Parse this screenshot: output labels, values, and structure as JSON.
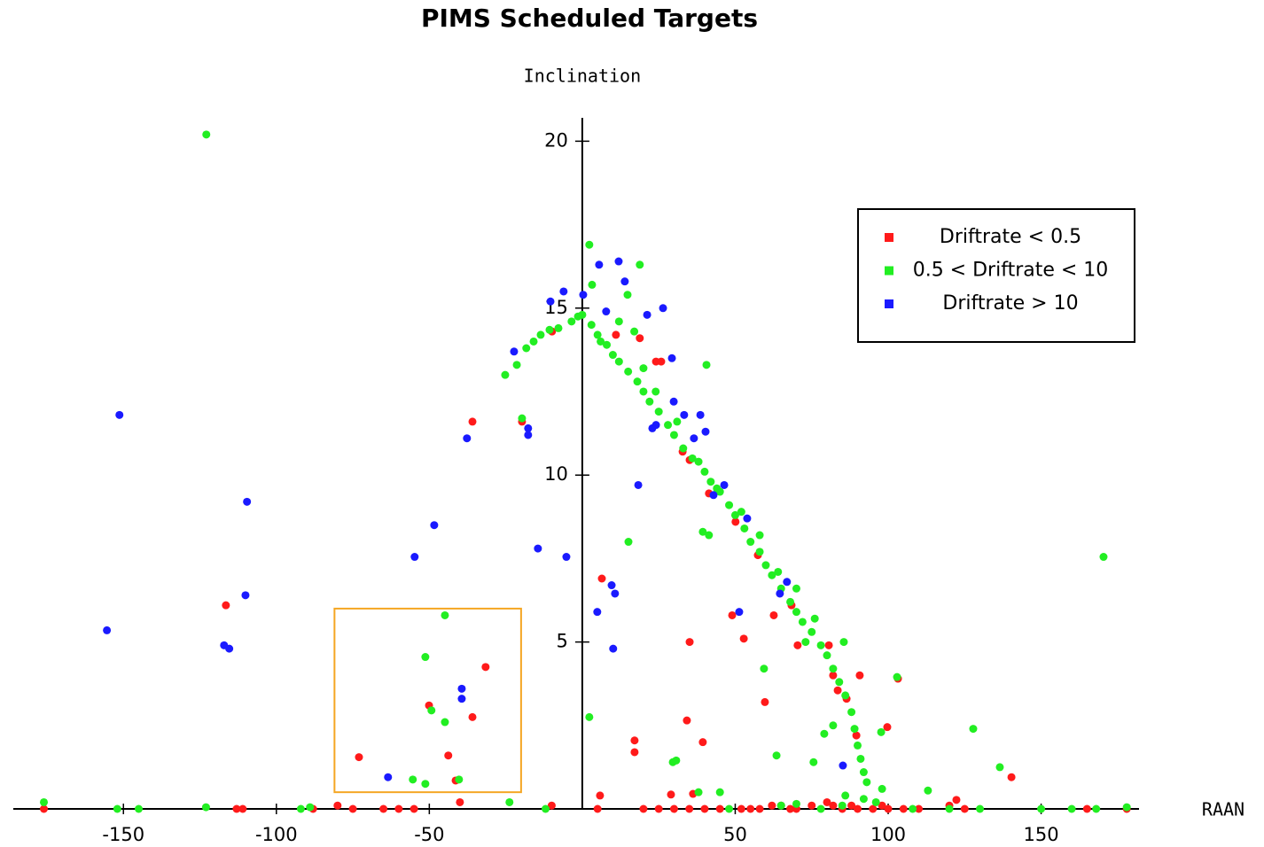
{
  "chart_data": {
    "type": "scatter",
    "title": "PIMS Scheduled Targets",
    "y_label": "Inclination",
    "x_label": "RAAN",
    "xlim": [
      -186,
      182
    ],
    "ylim": [
      0,
      20.7
    ],
    "xticks": [
      -150,
      -100,
      -50,
      50,
      100,
      150
    ],
    "yticks": [
      5,
      10,
      15,
      20
    ],
    "legend": "upper right",
    "region": {
      "x": [
        -81,
        -20
      ],
      "y": [
        0.5,
        6
      ],
      "color": "#f5a623"
    },
    "series": [
      {
        "name": "Driftrate < 0.5",
        "color": "#ff1a1a",
        "x": [
          -116.5,
          -35.9,
          -19.7,
          -9.9,
          -31.6,
          -50.1,
          -35.9,
          -43.8,
          -73.0,
          -41.4,
          6.4,
          17.1,
          17.1,
          35.1,
          34.2,
          39.4,
          49.0,
          52.8,
          59.7,
          62.6,
          68.4,
          24.1,
          25.8,
          11.0,
          18.8,
          32.8,
          35.1,
          41.4,
          50.1,
          57.4,
          70.4,
          80.6,
          82.0,
          90.7,
          83.5,
          86.4,
          89.6,
          99.7,
          103.2,
          140.3,
          122.3,
          5.8,
          29,
          36.2,
          -176,
          -113,
          -111,
          -88,
          -80,
          -75,
          -65,
          -60,
          -55,
          -40,
          -10,
          5,
          20,
          25,
          30,
          35,
          40,
          45,
          52,
          55,
          58,
          62,
          65,
          68,
          70,
          75,
          80,
          82,
          85,
          88,
          90,
          95,
          98,
          100,
          105,
          110,
          120,
          125,
          165,
          178
        ],
        "values": [
          6.1,
          11.6,
          11.6,
          14.3,
          4.25,
          3.1,
          2.75,
          1.6,
          1.55,
          0.85,
          6.9,
          2.05,
          1.7,
          5.0,
          2.65,
          2.0,
          5.8,
          5.1,
          3.2,
          5.8,
          6.1,
          13.4,
          13.4,
          14.2,
          14.1,
          10.7,
          10.45,
          9.45,
          8.6,
          7.6,
          4.9,
          4.9,
          4.0,
          4.0,
          3.55,
          3.3,
          2.2,
          2.45,
          3.9,
          0.95,
          0.27,
          0.4,
          0.43,
          0.45,
          0,
          0,
          0,
          0,
          0.1,
          0,
          0,
          0,
          0,
          0.2,
          0.1,
          0,
          0,
          0,
          0,
          0,
          0,
          0,
          0,
          0,
          0,
          0.1,
          0.1,
          0,
          0,
          0.1,
          0.2,
          0.1,
          0,
          0.1,
          0,
          0,
          0.1,
          0,
          0,
          0,
          0.1,
          0,
          0,
          0
        ]
      },
      {
        "name": "0.5 < Driftrate < 10",
        "color": "#22ee22",
        "x": [
          -122.9,
          -44.9,
          -51.3,
          -49.3,
          -44.9,
          -55.4,
          -51.3,
          -40.3,
          -23.8,
          -25.2,
          -19.7,
          -21.4,
          -18.3,
          -15.9,
          -13.6,
          -10.7,
          -7.8,
          -3.5,
          -1.4,
          2.3,
          3.2,
          14.8,
          18.8,
          2.3,
          15.1,
          29.6,
          30.7,
          40.6,
          39.4,
          41.4,
          59.4,
          63.5,
          75.6,
          79.1,
          82.0,
          85.5,
          97.7,
          102.9,
          127.8,
          136.5,
          170.4,
          113,
          5,
          8,
          10,
          12,
          15,
          18,
          20,
          22,
          25,
          28,
          30,
          33,
          36,
          40,
          42,
          45,
          48,
          50,
          53,
          55,
          58,
          60,
          62,
          65,
          68,
          70,
          72,
          75,
          78,
          80,
          82,
          84,
          86,
          88,
          89,
          90,
          91,
          92,
          93,
          12,
          17,
          20,
          24,
          31,
          38,
          44,
          52,
          58,
          64,
          70,
          73,
          76,
          0,
          3,
          6,
          -176,
          -152,
          -145,
          -123,
          -92,
          -89,
          -12,
          48,
          65,
          70,
          78,
          85,
          92,
          96,
          108,
          120,
          130,
          150,
          160,
          168,
          178,
          38,
          45,
          86,
          98
        ],
        "values": [
          20.2,
          5.8,
          4.55,
          2.95,
          2.6,
          0.88,
          0.75,
          0.88,
          0.2,
          13.0,
          11.7,
          13.3,
          13.8,
          14.0,
          14.2,
          14.35,
          14.4,
          14.6,
          14.75,
          16.9,
          15.7,
          15.4,
          16.3,
          2.75,
          8.0,
          1.4,
          1.45,
          13.3,
          8.3,
          8.2,
          4.2,
          1.6,
          1.4,
          2.25,
          2.5,
          5.0,
          2.3,
          3.95,
          2.4,
          1.25,
          7.55,
          0.55,
          14.2,
          13.9,
          13.6,
          13.4,
          13.1,
          12.8,
          12.5,
          12.2,
          11.9,
          11.5,
          11.2,
          10.8,
          10.5,
          10.1,
          9.8,
          9.5,
          9.1,
          8.8,
          8.4,
          8.0,
          7.7,
          7.3,
          7.0,
          6.6,
          6.2,
          5.9,
          5.6,
          5.3,
          4.9,
          4.6,
          4.2,
          3.8,
          3.4,
          2.9,
          2.4,
          1.9,
          1.5,
          1.1,
          0.8,
          14.6,
          14.3,
          13.2,
          12.5,
          11.6,
          10.4,
          9.6,
          8.9,
          8.2,
          7.1,
          6.6,
          5.0,
          5.7,
          14.8,
          14.5,
          14.0,
          0.2,
          0,
          0,
          0.05,
          0,
          0.05,
          0,
          0,
          0.1,
          0.15,
          0,
          0.1,
          0.3,
          0.2,
          0,
          0,
          0,
          0,
          0,
          0,
          0.05,
          0.5,
          0.5,
          0.4,
          0.6
        ]
      },
      {
        "name": "Driftrate > 10",
        "color": "#1a1aff",
        "x": [
          -151.3,
          -155.4,
          -109.6,
          -110.1,
          -117.1,
          -115.4,
          -54.8,
          -48.4,
          -37.7,
          -22.3,
          -17.7,
          -17.7,
          -14.5,
          -5.2,
          -10.4,
          -6.1,
          0.3,
          5.5,
          11.9,
          7.8,
          9.6,
          10.7,
          4.9,
          10.1,
          18.3,
          13.9,
          21.2,
          26.4,
          29.3,
          24.1,
          22.9,
          29.9,
          33.3,
          38.6,
          40.3,
          36.5,
          42.9,
          46.4,
          53.9,
          51.3,
          64.6,
          66.9,
          85.2,
          -63.5,
          -39.4,
          -39.4
        ],
        "values": [
          11.8,
          5.35,
          9.2,
          6.4,
          4.9,
          4.8,
          7.55,
          8.5,
          11.1,
          13.7,
          11.4,
          11.2,
          7.8,
          7.55,
          15.2,
          15.5,
          15.4,
          16.3,
          16.4,
          14.9,
          6.7,
          6.45,
          5.9,
          4.8,
          9.7,
          15.8,
          14.8,
          15.0,
          13.5,
          11.5,
          11.4,
          12.2,
          11.8,
          11.8,
          11.3,
          11.1,
          9.4,
          9.7,
          8.7,
          5.9,
          6.45,
          6.8,
          1.3,
          0.95,
          3.6,
          3.3
        ]
      }
    ]
  }
}
